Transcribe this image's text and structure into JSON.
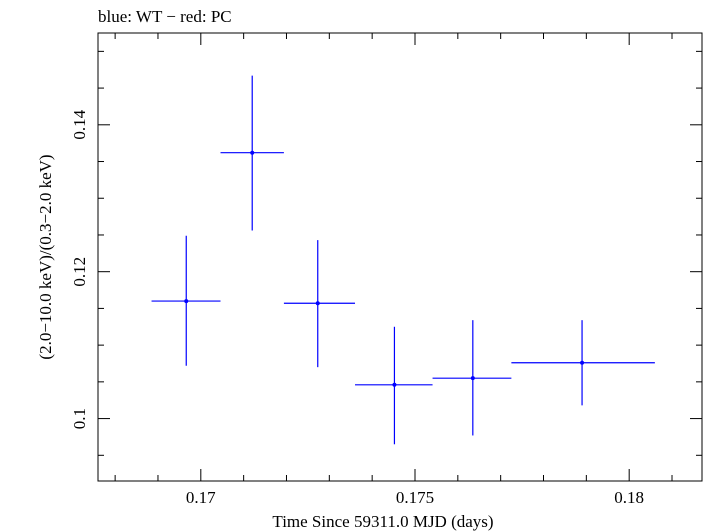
{
  "chart_data": {
    "type": "scatter",
    "title": "blue: WT − red: PC",
    "xlabel": "Time Since 59311.0 MJD (days)",
    "ylabel": "(2.0−10.0 keV)/(0.3−2.0 keV)",
    "xlim": [
      0.1676,
      0.1817
    ],
    "ylim": [
      0.0915,
      0.1525
    ],
    "xticks": [
      {
        "value": 0.17,
        "label": "0.17"
      },
      {
        "value": 0.175,
        "label": "0.175"
      },
      {
        "value": 0.18,
        "label": "0.18"
      }
    ],
    "yticks": [
      {
        "value": 0.1,
        "label": "0.1"
      },
      {
        "value": 0.12,
        "label": "0.12"
      },
      {
        "value": 0.14,
        "label": "0.14"
      }
    ],
    "grid": false,
    "series": [
      {
        "color": "#0000ff",
        "points": [
          {
            "x": 0.16966,
            "xerr_low": 0.16885,
            "xerr_high": 0.17046,
            "y": 0.116,
            "yerr_low": 0.1072,
            "yerr_high": 0.1249
          },
          {
            "x": 0.1712,
            "xerr_low": 0.17046,
            "xerr_high": 0.17194,
            "y": 0.1362,
            "yerr_low": 0.1256,
            "yerr_high": 0.1467
          },
          {
            "x": 0.17273,
            "xerr_low": 0.17194,
            "xerr_high": 0.1736,
            "y": 0.1157,
            "yerr_low": 0.107,
            "yerr_high": 0.1243
          },
          {
            "x": 0.17452,
            "xerr_low": 0.1736,
            "xerr_high": 0.17541,
            "y": 0.1046,
            "yerr_low": 0.0965,
            "yerr_high": 0.1125
          },
          {
            "x": 0.17635,
            "xerr_low": 0.17541,
            "xerr_high": 0.17725,
            "y": 0.1055,
            "yerr_low": 0.0977,
            "yerr_high": 0.1134
          },
          {
            "x": 0.1789,
            "xerr_low": 0.17725,
            "xerr_high": 0.1806,
            "y": 0.1076,
            "yerr_low": 0.1018,
            "yerr_high": 0.1134
          }
        ]
      }
    ]
  }
}
